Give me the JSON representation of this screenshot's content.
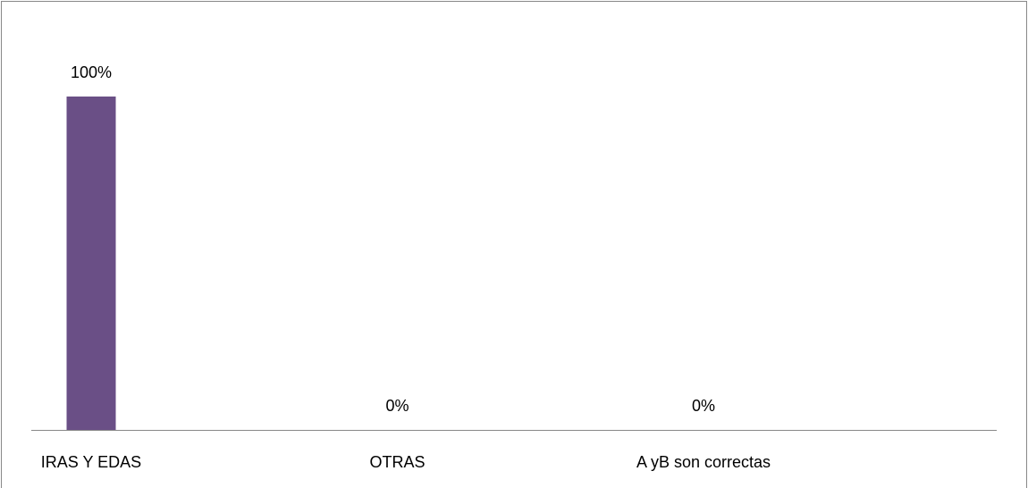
{
  "chart_data": {
    "type": "bar",
    "categories": [
      "IRAS Y EDAS",
      "OTRAS",
      "A yB son correctas"
    ],
    "values": [
      100,
      0,
      0
    ],
    "value_labels": [
      "100%",
      "0%",
      "0%"
    ],
    "color": "#6a4f86",
    "ylim": [
      0,
      100
    ]
  }
}
